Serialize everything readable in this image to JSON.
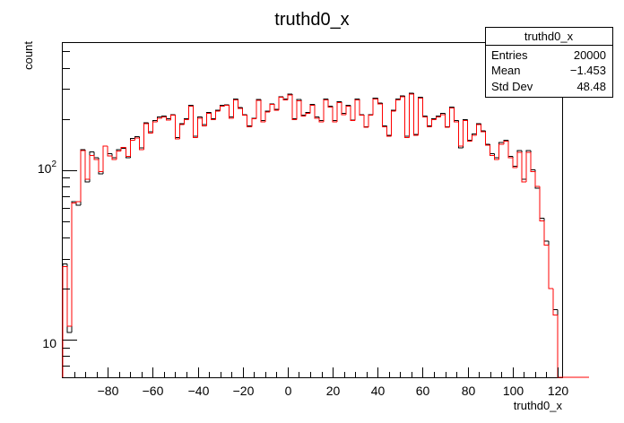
{
  "chart_data": {
    "type": "histogram",
    "title": "truthd0_x",
    "xlabel": "truthd0_x",
    "ylabel": "count",
    "x_range": [
      -100,
      122
    ],
    "y_range": [
      6,
      560
    ],
    "y_scale": "log",
    "grid": false,
    "x_ticks": [
      -80,
      -60,
      -40,
      -20,
      0,
      20,
      40,
      60,
      80,
      100,
      120
    ],
    "y_tick_labels": [
      {
        "value": 10,
        "label": "10"
      },
      {
        "value": 100,
        "label": "10²"
      }
    ],
    "bin_width": 2,
    "bin_start": -100,
    "stats": {
      "name": "truthd0_x",
      "rows": [
        {
          "label": "Entries",
          "value": "20000"
        },
        {
          "label": "Mean",
          "value": "−1.453"
        },
        {
          "label": "Std Dev",
          "value": "48.48"
        }
      ]
    },
    "series": [
      {
        "color": "#000000",
        "values": [
          28,
          11,
          65,
          62,
          132,
          85,
          128,
          118,
          95,
          138,
          125,
          118,
          132,
          134,
          118,
          153,
          157,
          135,
          190,
          168,
          195,
          205,
          208,
          200,
          212,
          155,
          188,
          200,
          240,
          158,
          205,
          185,
          218,
          200,
          225,
          240,
          242,
          205,
          262,
          233,
          212,
          182,
          202,
          260,
          195,
          222,
          245,
          228,
          270,
          262,
          280,
          200,
          260,
          210,
          218,
          243,
          205,
          195,
          262,
          238,
          195,
          253,
          215,
          240,
          197,
          262,
          212,
          180,
          212,
          265,
          248,
          182,
          160,
          225,
          262,
          273,
          158,
          283,
          162,
          268,
          208,
          182,
          200,
          208,
          215,
          180,
          235,
          195,
          135,
          198,
          150,
          163,
          188,
          170,
          142,
          125,
          118,
          145,
          150,
          120,
          105,
          130,
          88,
          130,
          100,
          78,
          52,
          38,
          20,
          15,
          0,
          0,
          0,
          0,
          0,
          0,
          0
        ],
        "hidden": true
      },
      {
        "color": "#ff0000",
        "values": [
          27,
          12,
          64,
          65,
          130,
          88,
          122,
          115,
          98,
          138,
          121,
          115,
          129,
          136,
          120,
          150,
          154,
          132,
          188,
          165,
          192,
          202,
          205,
          197,
          210,
          152,
          185,
          198,
          238,
          155,
          202,
          182,
          215,
          198,
          222,
          238,
          240,
          202,
          258,
          230,
          210,
          180,
          200,
          257,
          192,
          220,
          243,
          225,
          268,
          258,
          277,
          198,
          255,
          208,
          215,
          240,
          202,
          192,
          258,
          235,
          192,
          250,
          212,
          238,
          195,
          258,
          210,
          178,
          210,
          262,
          245,
          180,
          158,
          222,
          258,
          270,
          155,
          280,
          160,
          265,
          205,
          180,
          198,
          205,
          212,
          178,
          232,
          192,
          138,
          195,
          148,
          160,
          185,
          168,
          140,
          122,
          115,
          142,
          148,
          118,
          103,
          127,
          85,
          127,
          98,
          80,
          50,
          36,
          20,
          14,
          0,
          0,
          0,
          0,
          0,
          0,
          0
        ]
      }
    ]
  }
}
